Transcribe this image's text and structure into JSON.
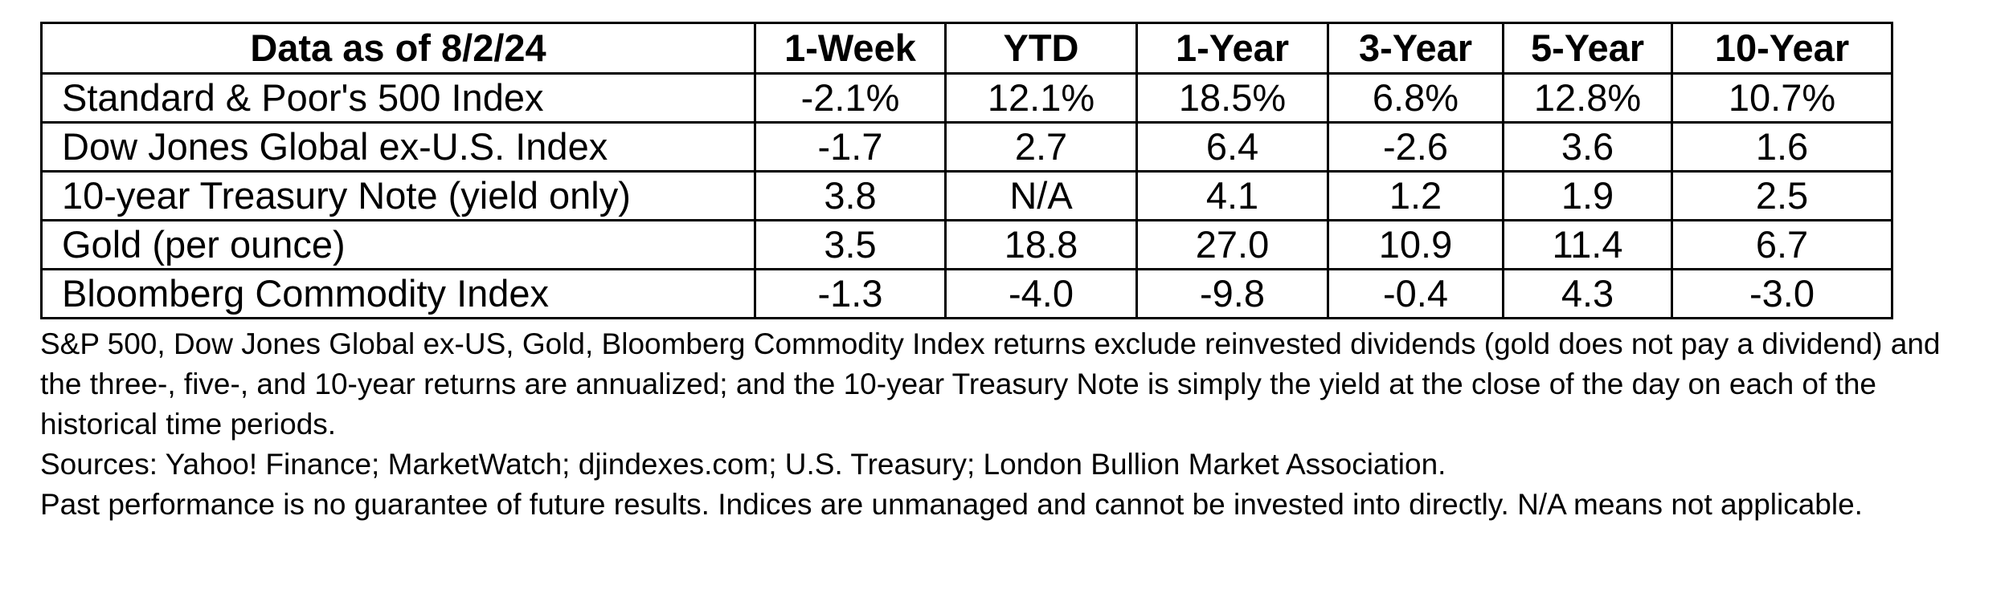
{
  "table": {
    "columns": [
      "Data as of 8/2/24",
      "1-Week",
      "YTD",
      "1-Year",
      "3-Year",
      "5-Year",
      "10-Year"
    ],
    "rows": [
      {
        "name": "Standard & Poor's 500 Index",
        "values": [
          "-2.1%",
          "12.1%",
          "18.5%",
          "6.8%",
          "12.8%",
          "10.7%"
        ]
      },
      {
        "name": "Dow Jones Global ex-U.S. Index",
        "values": [
          "-1.7",
          "2.7",
          "6.4",
          "-2.6",
          "3.6",
          "1.6"
        ]
      },
      {
        "name": "10-year Treasury Note (yield only)",
        "values": [
          "3.8",
          "N/A",
          "4.1",
          "1.2",
          "1.9",
          "2.5"
        ]
      },
      {
        "name": "Gold (per ounce)",
        "values": [
          "3.5",
          "18.8",
          "27.0",
          "10.9",
          "11.4",
          "6.7"
        ]
      },
      {
        "name": "Bloomberg Commodity Index",
        "values": [
          "-1.3",
          "-4.0",
          "-9.8",
          "-0.4",
          "4.3",
          "-3.0"
        ]
      }
    ]
  },
  "notes": {
    "methodology": "S&P 500, Dow Jones Global ex-US, Gold, Bloomberg Commodity Index returns exclude reinvested dividends (gold does not pay a dividend) and the three-, five-, and 10-year returns are annualized; and the 10-year Treasury Note is simply the yield at the close of the day on each of the historical time periods.",
    "sources": "Sources: Yahoo! Finance; MarketWatch; djindexes.com; U.S. Treasury; London Bullion Market Association.",
    "disclaimer": "Past performance is no guarantee of future results. Indices are unmanaged and cannot be invested into directly. N/A means not applicable."
  }
}
